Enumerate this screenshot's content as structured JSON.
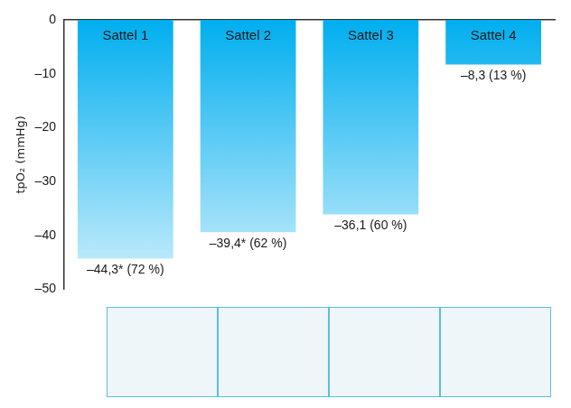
{
  "chart_data": {
    "type": "bar",
    "categories": [
      "Sattel 1",
      "Sattel 2",
      "Sattel 3",
      "Sattel 4"
    ],
    "values": [
      -44.3,
      -39.4,
      -36.1,
      -8.3
    ],
    "value_labels": [
      "–44,3* (72 %)",
      "–39,4* (62 %)",
      "–36,1 (60 %)",
      "–8,3 (13 %)"
    ],
    "color": "#00aeef",
    "ylabel": "tpO₂ (mmHg)",
    "ylim": [
      -50,
      0
    ],
    "yticks": [
      {
        "value": -50,
        "label": "–50"
      },
      {
        "value": -40,
        "label": "–40"
      },
      {
        "value": -30,
        "label": "–30"
      },
      {
        "value": -20,
        "label": "–20"
      },
      {
        "value": -10,
        "label": "–10"
      },
      0
    ],
    "grid": false,
    "data_labels": true,
    "tick_labels": "y"
  }
}
